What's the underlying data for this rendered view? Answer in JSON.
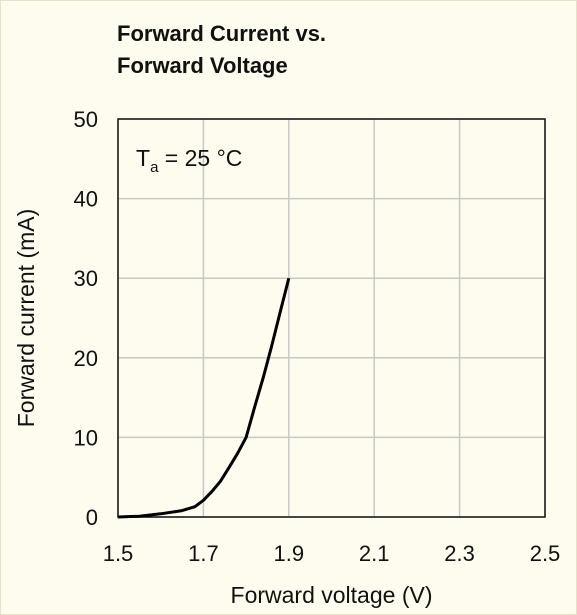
{
  "chart_data": {
    "type": "line",
    "title_line1": "Forward Current vs.",
    "title_line2": "Forward Voltage",
    "xlabel": "Forward voltage (V)",
    "ylabel": "Forward current (mA)",
    "xlim": [
      1.5,
      2.5
    ],
    "ylim": [
      0,
      50
    ],
    "xticks": [
      "1.5",
      "1.7",
      "1.9",
      "2.1",
      "2.3",
      "2.5"
    ],
    "yticks": [
      "0",
      "10",
      "20",
      "30",
      "40",
      "50"
    ],
    "grid": true,
    "annotation": {
      "prefix": "T",
      "subscript": "a",
      "suffix": " = 25 °C"
    },
    "series": [
      {
        "x": [
          1.5,
          1.55,
          1.6,
          1.65,
          1.68,
          1.7,
          1.72,
          1.74,
          1.76,
          1.78,
          1.8,
          1.82,
          1.84,
          1.86,
          1.88,
          1.9
        ],
        "y": [
          0,
          0.1,
          0.4,
          0.8,
          1.3,
          2.1,
          3.2,
          4.5,
          6.2,
          8.0,
          10.0,
          13.8,
          17.5,
          21.5,
          25.8,
          30.0
        ]
      }
    ],
    "line_color": "#000000",
    "grid_color": "#c8c8c8"
  }
}
